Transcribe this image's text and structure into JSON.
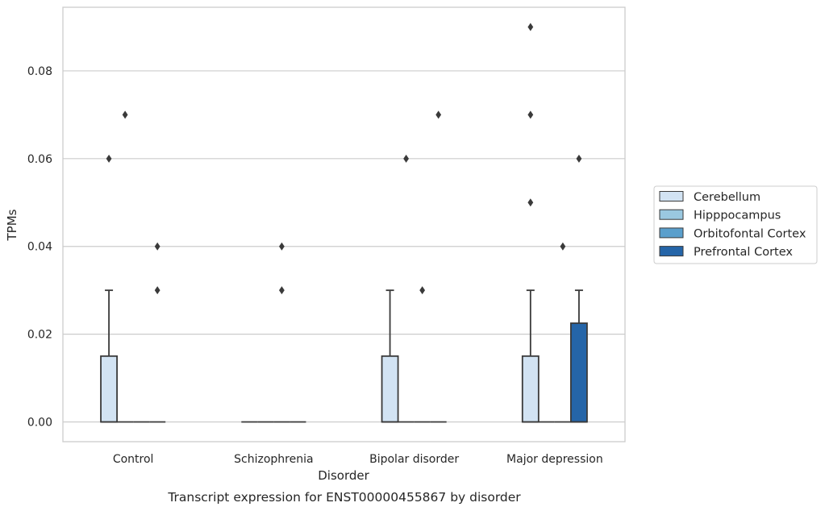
{
  "chart_data": {
    "type": "box",
    "title": "",
    "caption": "Transcript expression for ENST00000455867 by disorder",
    "xlabel": "Disorder",
    "ylabel": "TPMs",
    "ylim": [
      -0.0045,
      0.0945
    ],
    "yticks": [
      0.0,
      0.02,
      0.04,
      0.06,
      0.08
    ],
    "ytick_labels": [
      "0.00",
      "0.02",
      "0.04",
      "0.06",
      "0.08"
    ],
    "grid": "horizontal",
    "categories": [
      "Control",
      "Schizophrenia",
      "Bipolar disorder",
      "Major depression"
    ],
    "legend": {
      "placement": "outside-right"
    },
    "series": [
      {
        "name": "Cerebellum",
        "color": "#d2e3f3",
        "boxes": [
          {
            "q1": 0.0,
            "median": 0.0,
            "q3": 0.015,
            "whisker_low": 0.0,
            "whisker_high": 0.03,
            "outliers": [
              0.06
            ]
          },
          {
            "q1": 0.0,
            "median": 0.0,
            "q3": 0.0,
            "whisker_low": 0.0,
            "whisker_high": 0.0,
            "outliers": []
          },
          {
            "q1": 0.0,
            "median": 0.0,
            "q3": 0.015,
            "whisker_low": 0.0,
            "whisker_high": 0.03,
            "outliers": []
          },
          {
            "q1": 0.0,
            "median": 0.0,
            "q3": 0.015,
            "whisker_low": 0.0,
            "whisker_high": 0.03,
            "outliers": [
              0.05,
              0.07,
              0.09
            ]
          }
        ]
      },
      {
        "name": "Hipppocampus",
        "color": "#9ac8e0",
        "boxes": [
          {
            "q1": 0.0,
            "median": 0.0,
            "q3": 0.0,
            "whisker_low": 0.0,
            "whisker_high": 0.0,
            "outliers": [
              0.07
            ]
          },
          {
            "q1": 0.0,
            "median": 0.0,
            "q3": 0.0,
            "whisker_low": 0.0,
            "whisker_high": 0.0,
            "outliers": []
          },
          {
            "q1": 0.0,
            "median": 0.0,
            "q3": 0.0,
            "whisker_low": 0.0,
            "whisker_high": 0.0,
            "outliers": [
              0.06
            ]
          },
          {
            "q1": 0.0,
            "median": 0.0,
            "q3": 0.0,
            "whisker_low": 0.0,
            "whisker_high": 0.0,
            "outliers": []
          }
        ]
      },
      {
        "name": "Orbitofontal Cortex",
        "color": "#5a9fcc",
        "boxes": [
          {
            "q1": 0.0,
            "median": 0.0,
            "q3": 0.0,
            "whisker_low": 0.0,
            "whisker_high": 0.0,
            "outliers": []
          },
          {
            "q1": 0.0,
            "median": 0.0,
            "q3": 0.0,
            "whisker_low": 0.0,
            "whisker_high": 0.0,
            "outliers": [
              0.03,
              0.04
            ]
          },
          {
            "q1": 0.0,
            "median": 0.0,
            "q3": 0.0,
            "whisker_low": 0.0,
            "whisker_high": 0.0,
            "outliers": [
              0.03
            ]
          },
          {
            "q1": 0.0,
            "median": 0.0,
            "q3": 0.0,
            "whisker_low": 0.0,
            "whisker_high": 0.0,
            "outliers": [
              0.04
            ]
          }
        ]
      },
      {
        "name": "Prefrontal Cortex",
        "color": "#2565a8",
        "boxes": [
          {
            "q1": 0.0,
            "median": 0.0,
            "q3": 0.0,
            "whisker_low": 0.0,
            "whisker_high": 0.0,
            "outliers": [
              0.03,
              0.04
            ]
          },
          {
            "q1": 0.0,
            "median": 0.0,
            "q3": 0.0,
            "whisker_low": 0.0,
            "whisker_high": 0.0,
            "outliers": []
          },
          {
            "q1": 0.0,
            "median": 0.0,
            "q3": 0.0,
            "whisker_low": 0.0,
            "whisker_high": 0.0,
            "outliers": [
              0.07
            ]
          },
          {
            "q1": 0.0,
            "median": 0.0,
            "q3": 0.0225,
            "whisker_low": 0.0,
            "whisker_high": 0.03,
            "outliers": [
              0.06
            ]
          }
        ]
      }
    ]
  }
}
